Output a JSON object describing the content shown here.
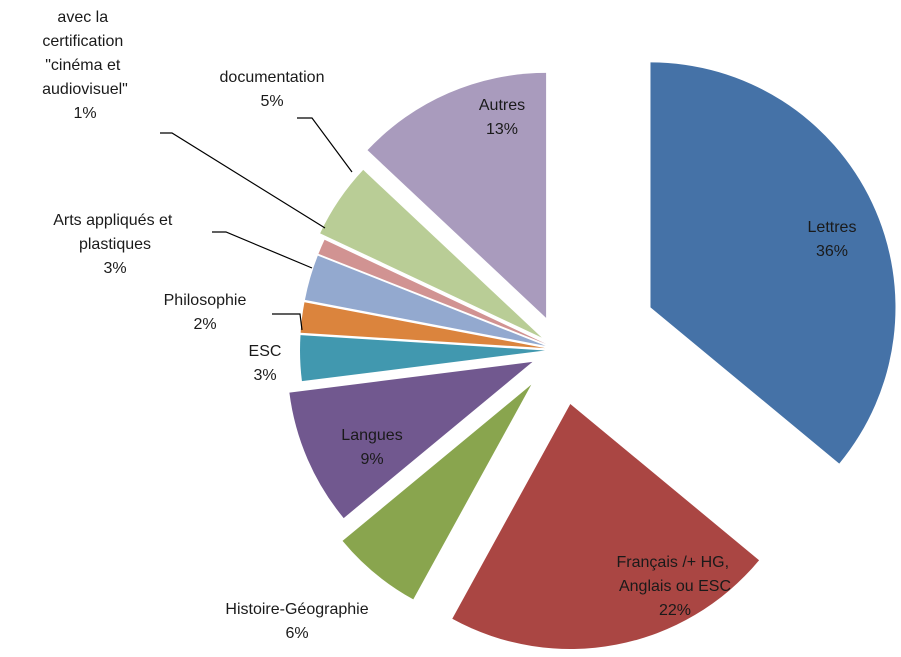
{
  "chart_data": {
    "type": "pie",
    "categories": [
      "Lettres",
      "Français /+ HG, Anglais ou ESC",
      "Histoire-Géographie",
      "Langues",
      "ESC",
      "Philosophie",
      "Arts appliqués et plastiques",
      "avec la certification \"cinéma et audiovisuel\"",
      "documentation",
      "Autres"
    ],
    "values": [
      36,
      22,
      6,
      9,
      3,
      2,
      3,
      1,
      5,
      13
    ],
    "value_labels": [
      "36%",
      "22%",
      "6%",
      "9%",
      "3%",
      "2%",
      "3%",
      "1%",
      "5%",
      "13%"
    ],
    "colors": [
      "#4572a7",
      "#aa4643",
      "#89a54e",
      "#71588f",
      "#4198af",
      "#db843d",
      "#93a9cf",
      "#d19392",
      "#b9cd96",
      "#a99bbd"
    ]
  }
}
